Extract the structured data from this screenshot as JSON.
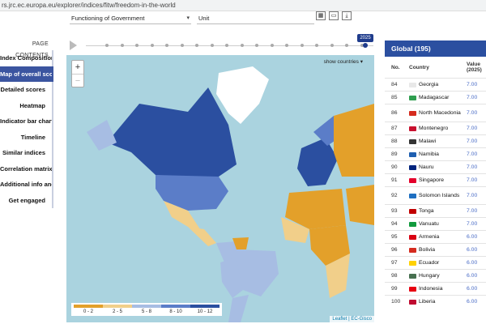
{
  "browser": {
    "url": "rs.jrc.ec.europa.eu/explorer/indices/fitw/freedom-in-the-world"
  },
  "filters": {
    "indicator": "Functioning of Government",
    "unit": "Unit",
    "icon_names": [
      "table-icon",
      "image-icon",
      "download-icon"
    ]
  },
  "sidebar": {
    "header": "PAGE CONTENTS",
    "items": [
      {
        "label": "Index Composition"
      },
      {
        "label": "Map of overall scores"
      },
      {
        "label": "Detailed scores"
      },
      {
        "label": "Heatmap"
      },
      {
        "label": "Indicator bar chart"
      },
      {
        "label": "Timeline"
      },
      {
        "label": "Similar indices"
      },
      {
        "label": "Correlation matrix"
      },
      {
        "label": "Additional info and links"
      },
      {
        "label": "Get engaged"
      }
    ],
    "active_index": 1
  },
  "timeline": {
    "year": "2025"
  },
  "map": {
    "show_countries": "show countries ▾",
    "zoom_in": "+",
    "zoom_out": "−",
    "legend": [
      {
        "label": "0 - 2",
        "color": "#e3a02a"
      },
      {
        "label": "2 - 5",
        "color": "#f1cf8a"
      },
      {
        "label": "5 - 8",
        "color": "#a7bde3"
      },
      {
        "label": "8 - 10",
        "color": "#5b7dc8"
      },
      {
        "label": "10 - 12",
        "color": "#2b4fa0"
      }
    ],
    "attribution": "Leaflet | EC-Gisco"
  },
  "ranking": {
    "title": "Global (195)",
    "col_no": "No.",
    "col_country": "Country",
    "col_value": "Value (2025)",
    "rows": [
      {
        "no": "84",
        "country": "Georgia",
        "value": "7.00",
        "flag": "#e8e8e8"
      },
      {
        "no": "85",
        "country": "Madagascar",
        "value": "7.00",
        "flag": "#2e9e4f"
      },
      {
        "no": "86",
        "country": "North Macedonia",
        "value": "7.00",
        "flag": "#d52b1e"
      },
      {
        "no": "87",
        "country": "Montenegro",
        "value": "7.00",
        "flag": "#c8102e"
      },
      {
        "no": "88",
        "country": "Malawi",
        "value": "7.00",
        "flag": "#333333"
      },
      {
        "no": "89",
        "country": "Namibia",
        "value": "7.00",
        "flag": "#1f5fb0"
      },
      {
        "no": "90",
        "country": "Nauru",
        "value": "7.00",
        "flag": "#00247d"
      },
      {
        "no": "91",
        "country": "Singapore",
        "value": "7.00",
        "flag": "#e4002b"
      },
      {
        "no": "92",
        "country": "Solomon Islands",
        "value": "7.00",
        "flag": "#1e6fc1"
      },
      {
        "no": "93",
        "country": "Tonga",
        "value": "7.00",
        "flag": "#c10000"
      },
      {
        "no": "94",
        "country": "Vanuatu",
        "value": "7.00",
        "flag": "#119a3d"
      },
      {
        "no": "95",
        "country": "Armenia",
        "value": "6.00",
        "flag": "#d90012"
      },
      {
        "no": "96",
        "country": "Bolivia",
        "value": "6.00",
        "flag": "#d52b1e"
      },
      {
        "no": "97",
        "country": "Ecuador",
        "value": "6.00",
        "flag": "#ffd100"
      },
      {
        "no": "98",
        "country": "Hungary",
        "value": "6.00",
        "flag": "#477050"
      },
      {
        "no": "99",
        "country": "Indonesia",
        "value": "6.00",
        "flag": "#e70011"
      },
      {
        "no": "100",
        "country": "Liberia",
        "value": "6.00",
        "flag": "#bf0a30"
      }
    ]
  }
}
